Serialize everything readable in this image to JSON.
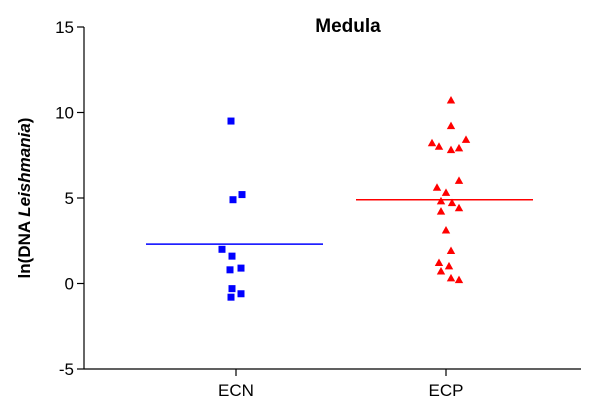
{
  "chart_data": {
    "type": "scatter",
    "title": "Medula",
    "ylabel": {
      "prefix": "ln(DNA ",
      "italic": "Leishmania",
      "suffix": ")"
    },
    "xlabel": "",
    "categories": [
      "ECN",
      "ECP"
    ],
    "ylim": [
      -5,
      15
    ],
    "yticks": [
      -5,
      0,
      5,
      10,
      15
    ],
    "ytick_labels": [
      "-5",
      "0",
      "5",
      "10",
      "15"
    ],
    "grid": false,
    "series": [
      {
        "category": "ECN",
        "marker": "square",
        "color": "#0000ff",
        "values": [
          9.5,
          5.2,
          4.9,
          2.0,
          1.6,
          0.9,
          0.8,
          -0.3,
          -0.6,
          -0.8
        ],
        "mean": 2.3
      },
      {
        "category": "ECP",
        "marker": "triangle",
        "color": "#ff0000",
        "values": [
          10.7,
          9.2,
          8.4,
          8.2,
          8.0,
          7.9,
          7.8,
          6.0,
          5.6,
          5.3,
          4.8,
          4.7,
          4.4,
          4.2,
          3.1,
          1.9,
          1.2,
          1.0,
          0.7,
          0.3,
          0.2
        ],
        "mean": 4.9
      }
    ]
  }
}
